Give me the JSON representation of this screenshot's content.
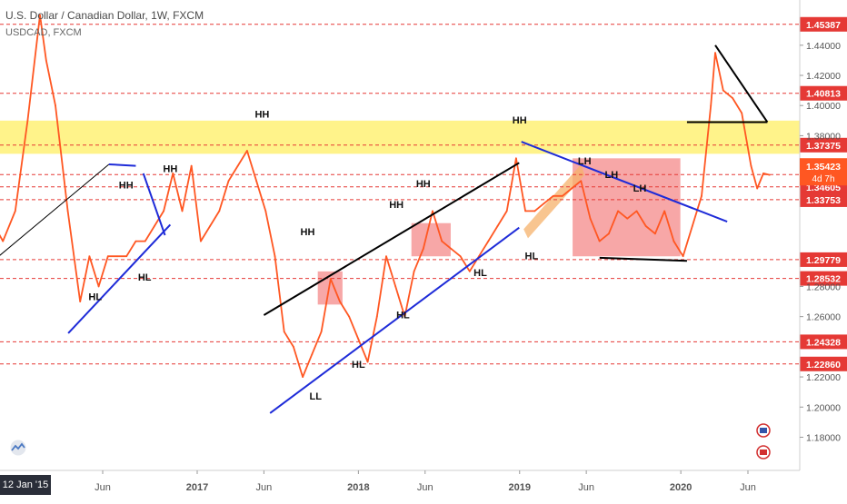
{
  "header": {
    "title": "U.S. Dollar / Canadian Dollar, 1W, FXCM",
    "symbol": "USDCAD, FXCM"
  },
  "footer": {
    "date_badge": "12 Jan '15"
  },
  "colors": {
    "price_line": "#ff5722",
    "level_line": "#e53935",
    "level_label_bg": "#e53935",
    "price_label_bg": "#ff5722",
    "trend_blue": "#1e2bd8",
    "trend_black": "#000000",
    "zone_yellow": "#fff176",
    "zone_red": "#f48a8a",
    "zone_orange": "#f6b26b",
    "axis_text": "#555555"
  },
  "chart_data": {
    "type": "line",
    "title": "U.S. Dollar / Canadian Dollar, 1W, FXCM",
    "xlabel": "",
    "ylabel": "",
    "ylim": [
      1.158,
      1.47
    ],
    "grid": false,
    "x_ticks": [
      "Jun",
      "2017",
      "Jun",
      "2018",
      "Jun",
      "2019",
      "Jun",
      "2020",
      "Jun"
    ],
    "x_tick_dates": [
      "2016-06-01",
      "2017-01-01",
      "2017-06-01",
      "2018-01-01",
      "2018-06-01",
      "2019-01-01",
      "2019-06-01",
      "2020-01-01",
      "2020-06-01"
    ],
    "y_ticks": [
      1.18,
      1.2,
      1.22,
      1.26,
      1.28,
      1.38,
      1.4,
      1.42,
      1.44
    ],
    "y_tick_labels": [
      "1.18000",
      "1.20000",
      "1.22000",
      "1.26000",
      "1.28000",
      "1.38000",
      "1.40000",
      "1.42000",
      "1.44000"
    ],
    "levels": [
      {
        "value": 1.45387,
        "label": "1.45387"
      },
      {
        "value": 1.40813,
        "label": "1.40813"
      },
      {
        "value": 1.37375,
        "label": "1.37375"
      },
      {
        "value": 1.35423,
        "label": "1.35423"
      },
      {
        "value": 1.34605,
        "label": "1.34605"
      },
      {
        "value": 1.33753,
        "label": "1.33753"
      },
      {
        "value": 1.29779,
        "label": "1.29779"
      },
      {
        "value": 1.28532,
        "label": "1.28532"
      },
      {
        "value": 1.24328,
        "label": "1.24328"
      },
      {
        "value": 1.2286,
        "label": "1.22860"
      }
    ],
    "current_price": {
      "value": 1.35423,
      "label": "1.35423",
      "countdown": "4d 7h"
    },
    "zones": [
      {
        "kind": "yellow",
        "x1": "2015-01-01",
        "x2": "2020-10-15",
        "y1": 1.368,
        "y2": 1.39
      },
      {
        "kind": "red",
        "x1": "2017-10-01",
        "x2": "2017-11-26",
        "y1": 1.268,
        "y2": 1.29
      },
      {
        "kind": "red",
        "x1": "2018-05-01",
        "x2": "2018-07-29",
        "y1": 1.3,
        "y2": 1.322
      },
      {
        "kind": "red",
        "x1": "2019-05-01",
        "x2": "2019-12-31",
        "y1": 1.3,
        "y2": 1.365
      }
    ],
    "series": [
      {
        "x": [
          "2015-01-12",
          "2015-02-09",
          "2015-03-09",
          "2015-04-06",
          "2015-05-04",
          "2015-06-01",
          "2015-06-29",
          "2015-07-27",
          "2015-08-24",
          "2015-09-21",
          "2015-10-19",
          "2015-11-16",
          "2015-12-14",
          "2016-01-11",
          "2016-01-25",
          "2016-02-15",
          "2016-03-14",
          "2016-04-11",
          "2016-05-02",
          "2016-05-23",
          "2016-06-13",
          "2016-07-04",
          "2016-07-25",
          "2016-08-15",
          "2016-09-05",
          "2016-09-26",
          "2016-10-17",
          "2016-11-07",
          "2016-11-28",
          "2016-12-19",
          "2017-01-09",
          "2017-01-30",
          "2017-02-20",
          "2017-03-13",
          "2017-04-03",
          "2017-04-24",
          "2017-05-15",
          "2017-06-05",
          "2017-06-26",
          "2017-07-17",
          "2017-08-07",
          "2017-08-28",
          "2017-09-18",
          "2017-10-09",
          "2017-10-30",
          "2017-11-20",
          "2017-12-11",
          "2018-01-01",
          "2018-01-22",
          "2018-02-12",
          "2018-03-05",
          "2018-03-26",
          "2018-04-16",
          "2018-05-07",
          "2018-05-28",
          "2018-06-18",
          "2018-07-09",
          "2018-07-30",
          "2018-08-20",
          "2018-09-10",
          "2018-10-01",
          "2018-10-22",
          "2018-11-12",
          "2018-12-03",
          "2018-12-24",
          "2019-01-14",
          "2019-02-04",
          "2019-02-25",
          "2019-03-18",
          "2019-04-08",
          "2019-04-29",
          "2019-05-20",
          "2019-06-10",
          "2019-07-01",
          "2019-07-22",
          "2019-08-12",
          "2019-09-02",
          "2019-09-23",
          "2019-10-14",
          "2019-11-04",
          "2019-11-25",
          "2019-12-16",
          "2020-01-06",
          "2020-01-27",
          "2020-02-17",
          "2020-03-09",
          "2020-03-19",
          "2020-04-06",
          "2020-04-27",
          "2020-05-18",
          "2020-06-08",
          "2020-06-22",
          "2020-07-06",
          "2020-07-20"
        ],
        "y": [
          1.24,
          1.26,
          1.26,
          1.255,
          1.23,
          1.245,
          1.27,
          1.31,
          1.33,
          1.325,
          1.31,
          1.33,
          1.39,
          1.46,
          1.43,
          1.4,
          1.33,
          1.27,
          1.3,
          1.28,
          1.3,
          1.3,
          1.3,
          1.31,
          1.31,
          1.32,
          1.33,
          1.355,
          1.33,
          1.36,
          1.31,
          1.32,
          1.33,
          1.35,
          1.36,
          1.37,
          1.35,
          1.33,
          1.3,
          1.25,
          1.24,
          1.22,
          1.235,
          1.25,
          1.285,
          1.27,
          1.26,
          1.245,
          1.23,
          1.26,
          1.3,
          1.28,
          1.26,
          1.29,
          1.305,
          1.33,
          1.31,
          1.305,
          1.3,
          1.29,
          1.3,
          1.31,
          1.32,
          1.33,
          1.365,
          1.33,
          1.33,
          1.335,
          1.34,
          1.34,
          1.345,
          1.35,
          1.325,
          1.31,
          1.315,
          1.33,
          1.325,
          1.33,
          1.32,
          1.315,
          1.33,
          1.31,
          1.3,
          1.32,
          1.34,
          1.4,
          1.435,
          1.41,
          1.405,
          1.395,
          1.36,
          1.345,
          1.355,
          1.354
        ]
      }
    ],
    "annotations": [
      {
        "text": "HH",
        "x": "2016-11-01",
        "y": 1.356
      },
      {
        "text": "HH",
        "x": "2016-07-24",
        "y": 1.345
      },
      {
        "text": "HL",
        "x": "2016-05-15",
        "y": 1.271
      },
      {
        "text": "HL",
        "x": "2016-09-04",
        "y": 1.284
      },
      {
        "text": "HH",
        "x": "2017-05-28",
        "y": 1.392
      },
      {
        "text": "HH",
        "x": "2017-09-08",
        "y": 1.314
      },
      {
        "text": "HH",
        "x": "2018-03-28",
        "y": 1.332
      },
      {
        "text": "HH",
        "x": "2018-05-28",
        "y": 1.346
      },
      {
        "text": "LL",
        "x": "2017-09-26",
        "y": 1.205
      },
      {
        "text": "HL",
        "x": "2018-01-01",
        "y": 1.226
      },
      {
        "text": "HL",
        "x": "2018-04-12",
        "y": 1.259
      },
      {
        "text": "HL",
        "x": "2018-10-04",
        "y": 1.287
      },
      {
        "text": "HH",
        "x": "2019-01-01",
        "y": 1.388
      },
      {
        "text": "LH",
        "x": "2019-05-28",
        "y": 1.361
      },
      {
        "text": "LH",
        "x": "2019-07-28",
        "y": 1.352
      },
      {
        "text": "LH",
        "x": "2019-09-30",
        "y": 1.343
      },
      {
        "text": "HL",
        "x": "2019-01-28",
        "y": 1.298
      }
    ],
    "trend_lines": [
      {
        "color": "black",
        "x1": "2015-08-01",
        "y1": 1.283,
        "x2": "2016-06-15",
        "y2": 1.361
      },
      {
        "color": "blue",
        "x1": "2016-03-15",
        "y1": 1.249,
        "x2": "2016-11-01",
        "y2": 1.321
      },
      {
        "color": "blue",
        "x1": "2016-06-15",
        "y1": 1.361,
        "x2": "2016-08-15",
        "y2": 1.36
      },
      {
        "color": "blue",
        "x1": "2016-09-01",
        "y1": 1.355,
        "x2": "2016-10-20",
        "y2": 1.314
      },
      {
        "color": "black",
        "x1": "2017-06-01",
        "y1": 1.261,
        "x2": "2018-12-31",
        "y2": 1.362
      },
      {
        "color": "blue",
        "x1": "2017-06-15",
        "y1": 1.196,
        "x2": "2018-12-31",
        "y2": 1.319
      },
      {
        "color": "blue",
        "x1": "2019-01-05",
        "y1": 1.376,
        "x2": "2020-04-15",
        "y2": 1.323
      },
      {
        "color": "black",
        "x1": "2019-07-01",
        "y1": 1.299,
        "x2": "2020-01-15",
        "y2": 1.297
      },
      {
        "color": "black",
        "x1": "2020-01-15",
        "y1": 1.389,
        "x2": "2020-07-15",
        "y2": 1.389
      },
      {
        "color": "black",
        "x1": "2020-03-19",
        "y1": 1.44,
        "x2": "2020-07-15",
        "y2": 1.389
      }
    ]
  }
}
